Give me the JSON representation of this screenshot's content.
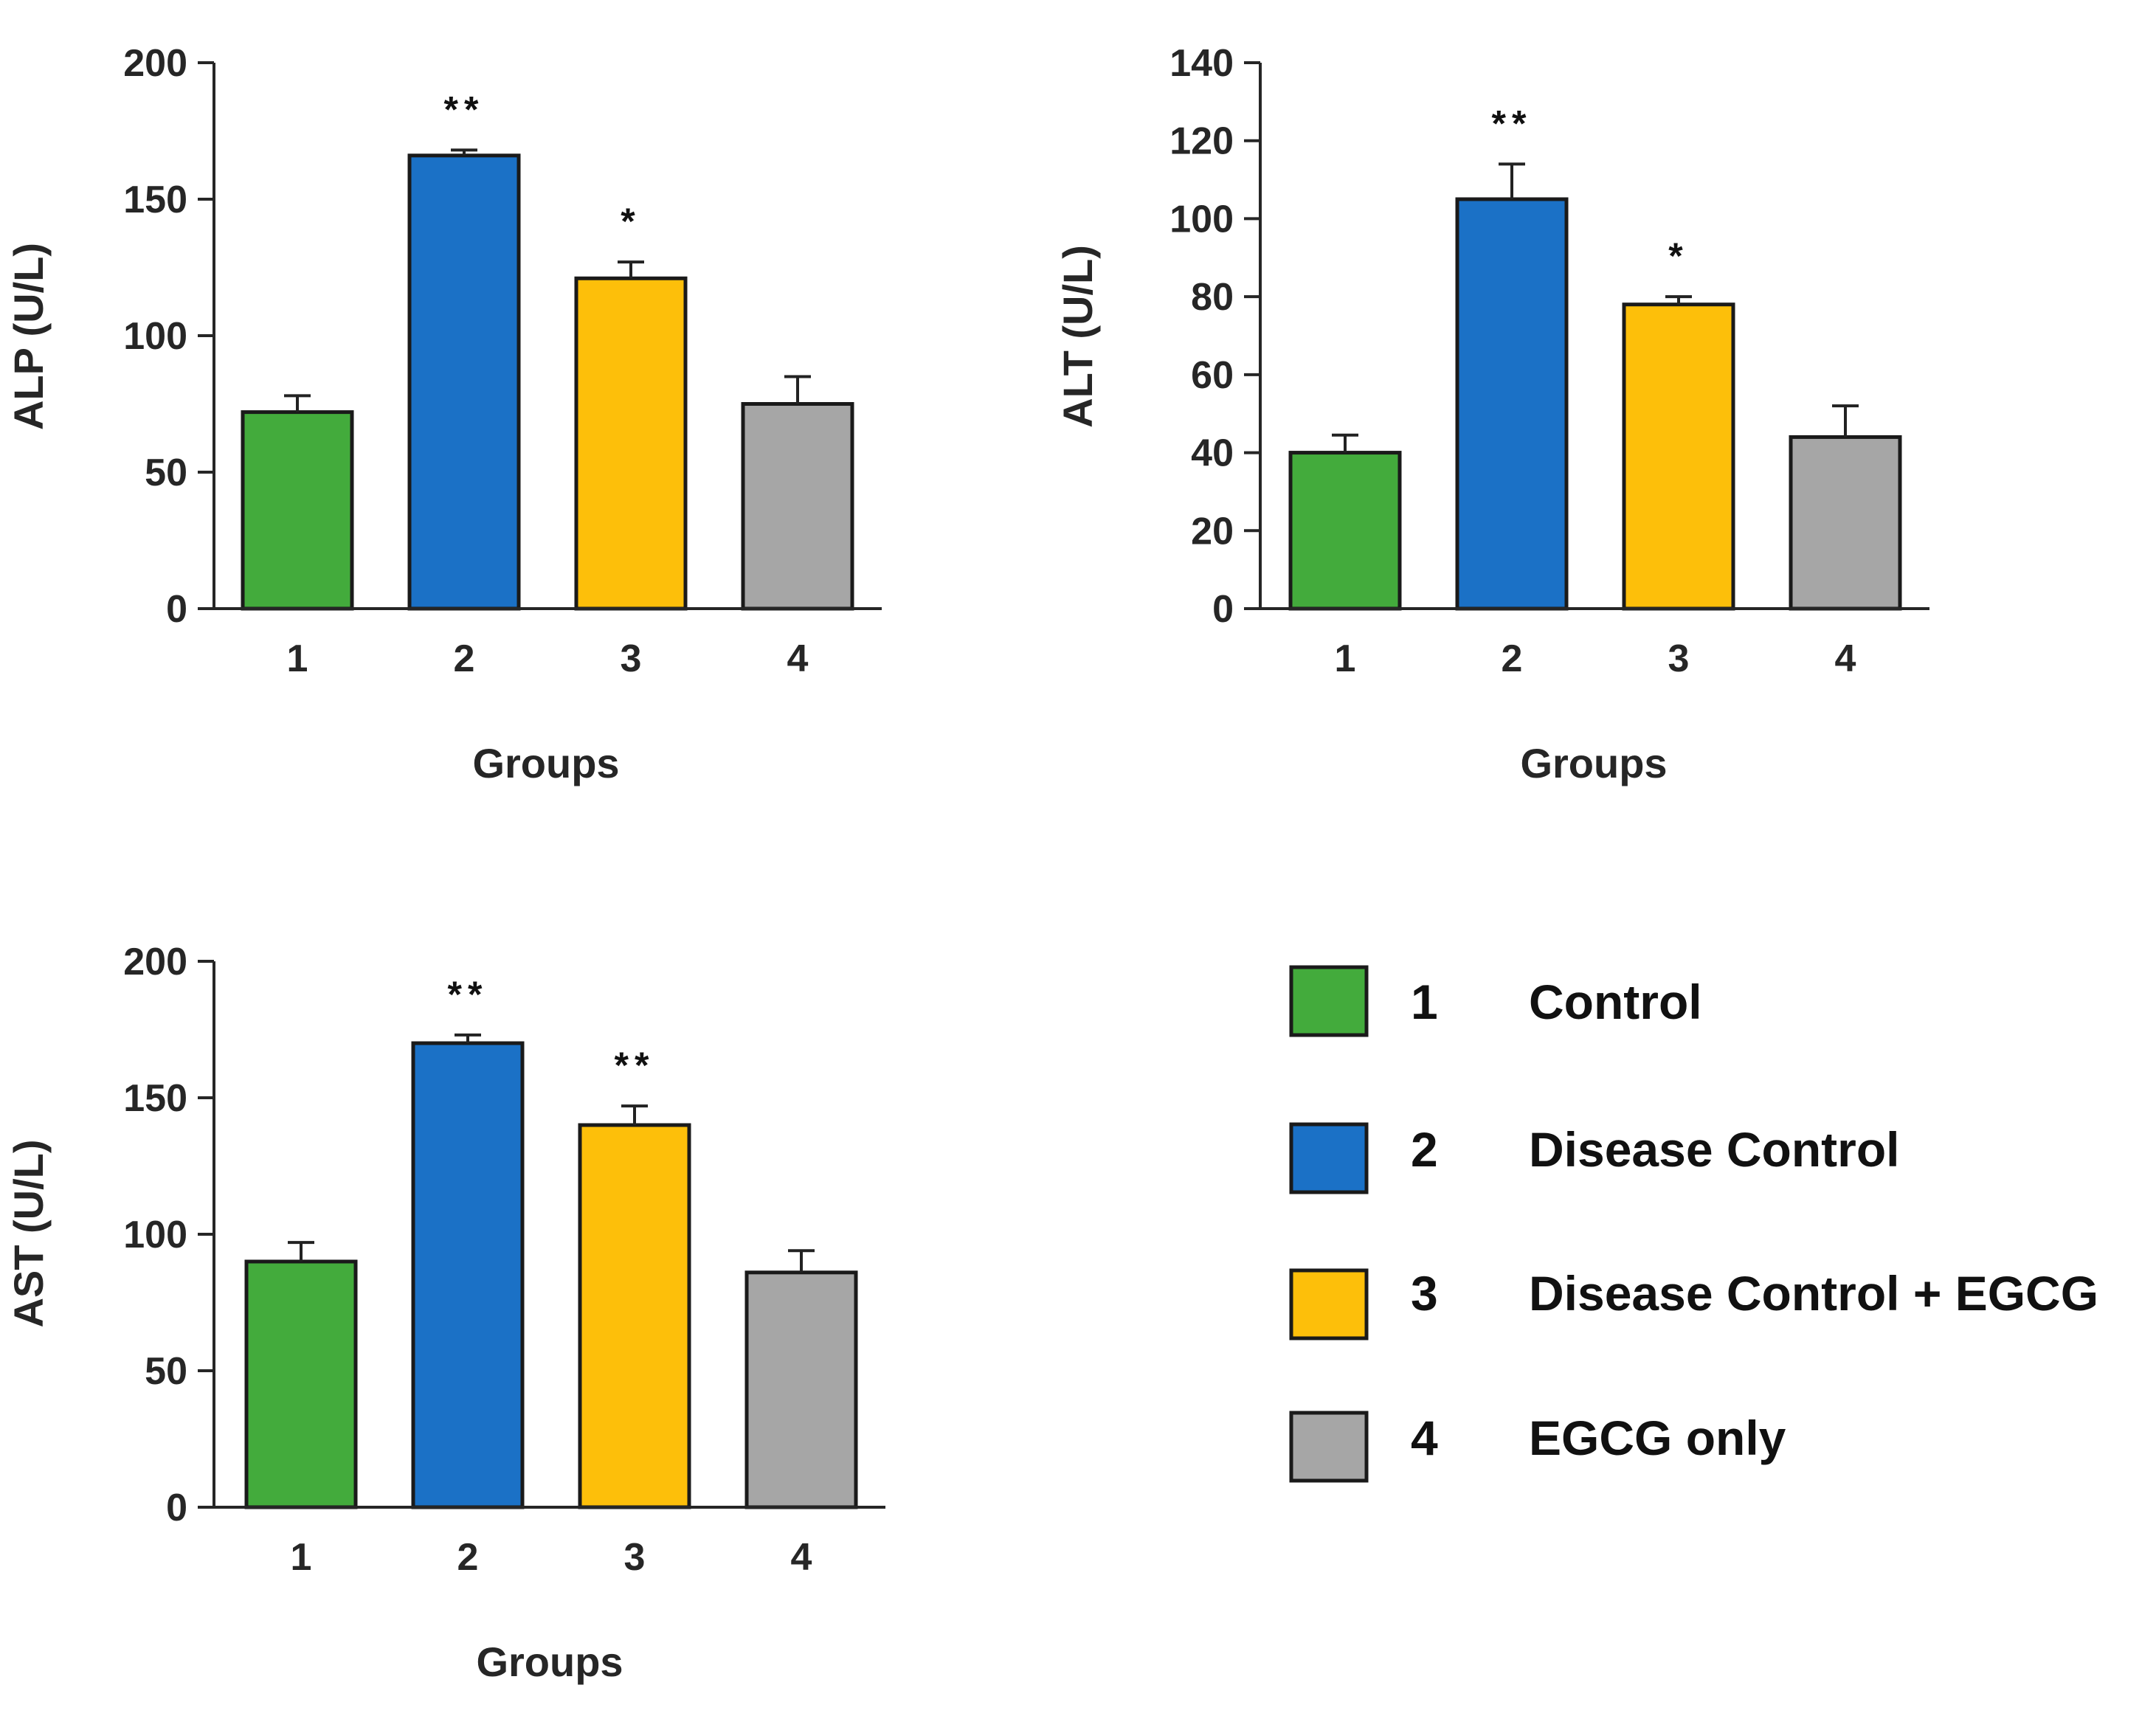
{
  "colors": {
    "group1": "#43ab3c",
    "group2": "#1b71c6",
    "group3": "#fdbf0a",
    "group4": "#a6a6a6",
    "axis": "#262626"
  },
  "chart_data": [
    {
      "type": "bar",
      "title": "",
      "xlabel": "Groups",
      "ylabel": "ALP (U/L)",
      "categories": [
        "1",
        "2",
        "3",
        "4"
      ],
      "values": [
        72,
        166,
        121,
        75
      ],
      "errors": [
        6,
        2,
        6,
        10
      ],
      "significance": [
        "",
        "**",
        "*",
        ""
      ],
      "ylim": [
        0,
        200
      ],
      "yticks": [
        0,
        50,
        100,
        150,
        200
      ],
      "ytick_labels": [
        "0",
        "50",
        "100",
        "150",
        "200"
      ]
    },
    {
      "type": "bar",
      "title": "",
      "xlabel": "Groups",
      "ylabel": "ALT (U/L)",
      "categories": [
        "1",
        "2",
        "3",
        "4"
      ],
      "values": [
        40,
        105,
        78,
        44
      ],
      "errors": [
        4.5,
        9,
        2,
        8
      ],
      "significance": [
        "",
        "**",
        "*",
        ""
      ],
      "ylim": [
        0,
        140
      ],
      "yticks": [
        0,
        20,
        40,
        60,
        80,
        100,
        120,
        140
      ],
      "ytick_labels": [
        "0",
        "20",
        "40",
        "60",
        "80",
        "100",
        "120",
        "140"
      ]
    },
    {
      "type": "bar",
      "title": "",
      "xlabel": "Groups",
      "ylabel": "AST (U/L)",
      "categories": [
        "1",
        "2",
        "3",
        "4"
      ],
      "values": [
        90,
        170,
        140,
        86
      ],
      "errors": [
        7,
        3,
        7,
        8
      ],
      "significance": [
        "",
        "**",
        "**",
        ""
      ],
      "ylim": [
        0,
        200
      ],
      "yticks": [
        0,
        50,
        100,
        150,
        200
      ],
      "ytick_labels": [
        "0",
        "50",
        "100",
        "150",
        "200"
      ]
    }
  ],
  "legend": {
    "items": [
      {
        "number": "1",
        "label": "Control",
        "color_key": "group1"
      },
      {
        "number": "2",
        "label": "Disease Control",
        "color_key": "group2"
      },
      {
        "number": "3",
        "label": "Disease Control + EGCG",
        "color_key": "group3"
      },
      {
        "number": "4",
        "label": "EGCG only",
        "color_key": "group4"
      }
    ]
  }
}
